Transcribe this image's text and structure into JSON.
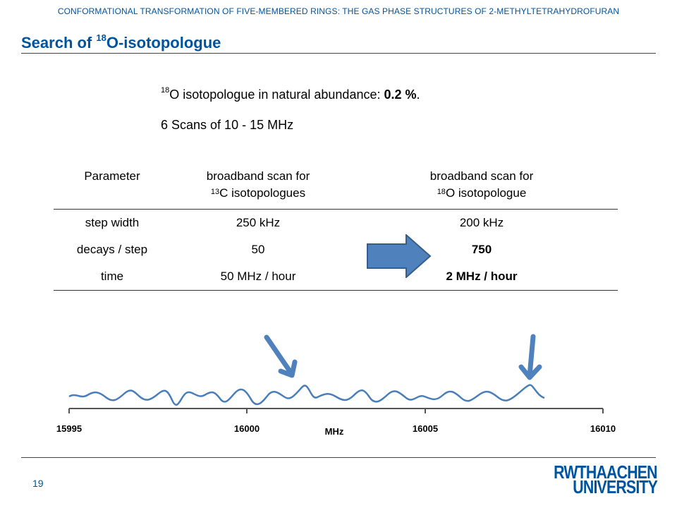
{
  "header": {
    "title": "CONFORMATIONAL TRANSFORMATION OF FIVE-MEMBERED RINGS: THE GAS PHASE STRUCTURES OF 2-METHYLTETRAHYDROFURAN"
  },
  "slide": {
    "title_prefix": "Search of ",
    "title_sup": "18",
    "title_suffix": "O-isotopologue",
    "abundance_sup": "18",
    "abundance_text": "O isotopologue in natural abundance: ",
    "abundance_value": "0.2 %",
    "abundance_end": ".",
    "scans_text": "6 Scans of 10 - 15 MHz"
  },
  "table": {
    "headers": {
      "param": "Parameter",
      "c13_line1": "broadband scan for",
      "c13_sup": "13",
      "c13_line2": "C isotopologues",
      "o18_line1": "broadband scan for",
      "o18_sup": "18",
      "o18_line2": "O isotopologue"
    },
    "rows": [
      {
        "param": "step width",
        "c13": "250 kHz",
        "o18": "200 kHz"
      },
      {
        "param": "decays / step",
        "c13": "50",
        "o18": "750"
      },
      {
        "param": "time",
        "c13": "50 MHz / hour",
        "o18": "2 MHz / hour"
      }
    ]
  },
  "spectrum": {
    "ticks": [
      "15995",
      "16000",
      "16005",
      "16010"
    ],
    "xlabel": "MHz",
    "line_color": "#4a7ebb"
  },
  "footer": {
    "page_number": "19",
    "logo_line1_a": "RWTH",
    "logo_line1_b": "AACHEN",
    "logo_line2": "UNIVERSITY"
  }
}
